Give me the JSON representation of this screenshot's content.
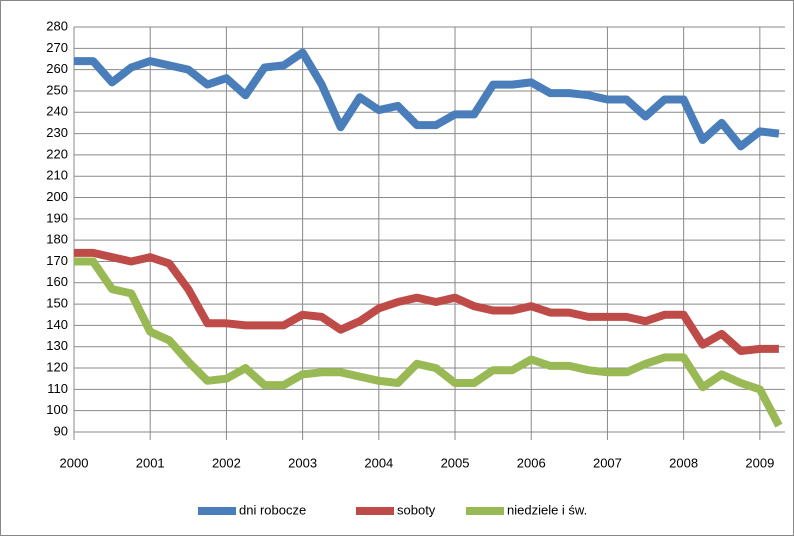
{
  "chart_data": {
    "type": "line",
    "x": [
      2000,
      2000.25,
      2000.5,
      2000.75,
      2001,
      2001.25,
      2001.5,
      2001.75,
      2002,
      2002.25,
      2002.5,
      2002.75,
      2003,
      2003.25,
      2003.5,
      2003.75,
      2004,
      2004.25,
      2004.5,
      2004.75,
      2005,
      2005.25,
      2005.5,
      2005.75,
      2006,
      2006.25,
      2006.5,
      2006.75,
      2007,
      2007.25,
      2007.5,
      2007.75,
      2008,
      2008.25,
      2008.5,
      2008.75,
      2009,
      2009.25
    ],
    "series": [
      {
        "name": "dni robocze",
        "color": "#4a7ebb",
        "values": [
          264,
          264,
          254,
          261,
          264,
          262,
          260,
          253,
          256,
          248,
          261,
          262,
          268,
          253,
          233,
          247,
          241,
          243,
          234,
          234,
          239,
          239,
          253,
          253,
          254,
          249,
          249,
          248,
          246,
          246,
          238,
          246,
          246,
          227,
          235,
          224,
          231,
          230
        ]
      },
      {
        "name": "soboty",
        "color": "#be4b48",
        "values": [
          174,
          174,
          172,
          170,
          172,
          169,
          157,
          141,
          141,
          140,
          140,
          140,
          145,
          144,
          138,
          142,
          148,
          151,
          153,
          151,
          153,
          149,
          147,
          147,
          149,
          146,
          146,
          144,
          144,
          144,
          142,
          145,
          145,
          131,
          136,
          128,
          129,
          129
        ]
      },
      {
        "name": "niedziele i św.",
        "color": "#98b954",
        "values": [
          170,
          170,
          157,
          155,
          137,
          133,
          123,
          114,
          115,
          120,
          112,
          112,
          117,
          118,
          118,
          116,
          114,
          113,
          122,
          120,
          113,
          113,
          119,
          119,
          124,
          121,
          121,
          119,
          118,
          118,
          122,
          125,
          125,
          111,
          117,
          113,
          110,
          93
        ]
      }
    ],
    "xlim": [
      2000,
      2009.33
    ],
    "xticks": [
      2000,
      2001,
      2002,
      2003,
      2004,
      2005,
      2006,
      2007,
      2008,
      2009
    ],
    "ylim": [
      90,
      280
    ],
    "yticks": [
      90,
      100,
      110,
      120,
      130,
      140,
      150,
      160,
      170,
      180,
      190,
      200,
      210,
      220,
      230,
      240,
      250,
      260,
      270,
      280
    ],
    "grid": true,
    "legend": "bottom"
  }
}
